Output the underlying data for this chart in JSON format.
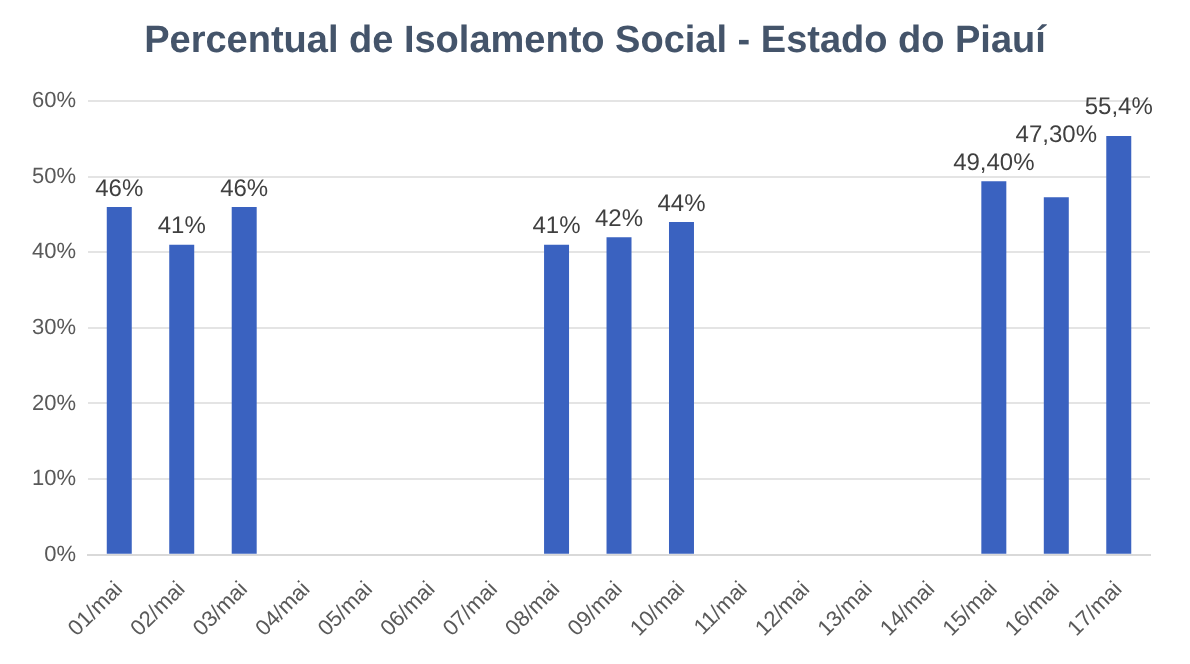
{
  "chart_data": {
    "type": "bar",
    "title": "Percentual de Isolamento Social - Estado do Piauí",
    "categories": [
      "01/mai",
      "02/mai",
      "03/mai",
      "04/mai",
      "05/mai",
      "06/mai",
      "07/mai",
      "08/mai",
      "09/mai",
      "10/mai",
      "11/mai",
      "12/mai",
      "13/mai",
      "14/mai",
      "15/mai",
      "16/mai",
      "17/mai"
    ],
    "values": [
      46,
      41,
      46,
      null,
      null,
      null,
      null,
      41,
      42,
      44,
      null,
      null,
      null,
      null,
      49.4,
      47.3,
      55.4
    ],
    "value_labels": [
      "46%",
      "41%",
      "46%",
      null,
      null,
      null,
      null,
      "41%",
      "42%",
      "44%",
      null,
      null,
      null,
      null,
      "49,40%",
      "47,30%",
      "55,4%"
    ],
    "color": "#3a62c0",
    "ylim": [
      0,
      60
    ],
    "yticks": [
      {
        "value": 0,
        "label": "0%"
      },
      {
        "value": 10,
        "label": "10%"
      },
      {
        "value": 20,
        "label": "20%"
      },
      {
        "value": 30,
        "label": "30%"
      },
      {
        "value": 40,
        "label": "40%"
      },
      {
        "value": 50,
        "label": "50%"
      },
      {
        "value": 60,
        "label": "60%"
      }
    ],
    "grid": "y",
    "legend": false
  }
}
